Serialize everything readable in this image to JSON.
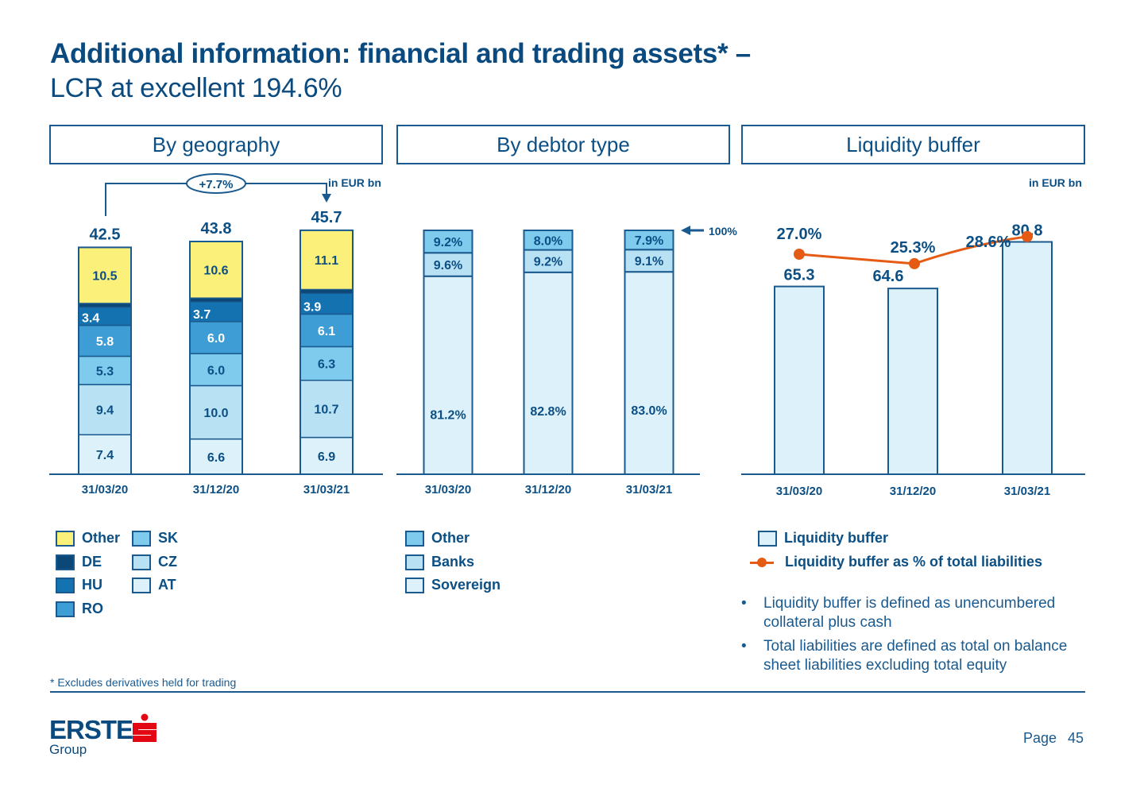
{
  "header": {
    "title": "Additional information: financial and trading assets* –",
    "subtitle": "LCR at excellent 194.6%"
  },
  "colors": {
    "dark_blue": "#0b4a7e",
    "line_orange": "#e55b13",
    "other_yellow": "#fbf07a",
    "de": "#0c4877",
    "hu": "#1472b1",
    "ro": "#3d9dd4",
    "sk": "#7fcbee",
    "cz": "#b9e1f4",
    "at": "#ddf1fa",
    "logo_red": "#e30613"
  },
  "panels": {
    "geography": {
      "title": "By geography",
      "unit": "in EUR bn",
      "growth_label": "+7.7%"
    },
    "debtor": {
      "title": "By debtor type",
      "hundred_label": "100%"
    },
    "liquidity": {
      "title": "Liquidity buffer",
      "unit": "in EUR bn"
    }
  },
  "chart_data": [
    {
      "type": "bar",
      "stacked": true,
      "title": "By geography",
      "unit": "in EUR bn",
      "categories": [
        "31/03/20",
        "31/12/20",
        "31/03/21"
      ],
      "totals": [
        "42.5",
        "43.8",
        "45.7"
      ],
      "series": [
        {
          "name": "AT",
          "color": "#ddf1fa",
          "values": [
            7.4,
            6.6,
            6.9
          ],
          "labels": [
            "7.4",
            "6.6",
            "6.9"
          ]
        },
        {
          "name": "CZ",
          "color": "#b9e1f4",
          "values": [
            9.4,
            10.0,
            10.7
          ],
          "labels": [
            "9.4",
            "10.0",
            "10.7"
          ]
        },
        {
          "name": "SK",
          "color": "#7fcbee",
          "values": [
            5.3,
            6.0,
            6.3
          ],
          "labels": [
            "5.3",
            "6.0",
            "6.3"
          ]
        },
        {
          "name": "RO",
          "color": "#3d9dd4",
          "values": [
            5.8,
            6.0,
            6.1
          ],
          "labels": [
            "5.8",
            "6.0",
            "6.1"
          ]
        },
        {
          "name": "HU",
          "color": "#1472b1",
          "values": [
            3.4,
            3.7,
            3.9
          ],
          "labels": [
            "3.4",
            "3.7",
            "3.9"
          ]
        },
        {
          "name": "DE",
          "color": "#0c4877",
          "values": [
            0.7,
            0.7,
            0.7
          ],
          "labels": [
            "0.7",
            "0.7",
            "0.7"
          ]
        },
        {
          "name": "Other",
          "color": "#fbf07a",
          "values": [
            10.5,
            10.6,
            11.1
          ],
          "labels": [
            "10.5",
            "10.6",
            "11.1"
          ]
        }
      ],
      "annotation": {
        "text": "+7.7%",
        "from": "31/03/20",
        "to": "31/03/21"
      },
      "legend": [
        {
          "name": "Other",
          "color": "#fbf07a"
        },
        {
          "name": "DE",
          "color": "#0c4877"
        },
        {
          "name": "HU",
          "color": "#1472b1"
        },
        {
          "name": "RO",
          "color": "#3d9dd4"
        },
        {
          "name": "SK",
          "color": "#7fcbee"
        },
        {
          "name": "CZ",
          "color": "#b9e1f4"
        },
        {
          "name": "AT",
          "color": "#ddf1fa"
        }
      ]
    },
    {
      "type": "bar",
      "stacked": true,
      "percent": true,
      "title": "By debtor type",
      "categories": [
        "31/03/20",
        "31/12/20",
        "31/03/21"
      ],
      "series": [
        {
          "name": "Sovereign",
          "color": "#ddf1fa",
          "values": [
            81.2,
            82.8,
            83.0
          ],
          "labels": [
            "81.2%",
            "82.8%",
            "83.0%"
          ]
        },
        {
          "name": "Banks",
          "color": "#b9e1f4",
          "values": [
            9.6,
            9.2,
            9.1
          ],
          "labels": [
            "9.6%",
            "9.2%",
            "9.1%"
          ]
        },
        {
          "name": "Other",
          "color": "#7fcbee",
          "values": [
            9.2,
            8.0,
            7.9
          ],
          "labels": [
            "9.2%",
            "8.0%",
            "7.9%"
          ]
        }
      ],
      "ylim": [
        0,
        100
      ],
      "annotation": "100%",
      "legend": [
        {
          "name": "Other",
          "color": "#7fcbee"
        },
        {
          "name": "Banks",
          "color": "#b9e1f4"
        },
        {
          "name": "Sovereign",
          "color": "#ddf1fa"
        }
      ]
    },
    {
      "type": "bar",
      "title": "Liquidity buffer",
      "unit": "in EUR bn",
      "categories": [
        "31/03/20",
        "31/12/20",
        "31/03/21"
      ],
      "series": [
        {
          "name": "Liquidity buffer",
          "kind": "bar",
          "color": "#ddf1fa",
          "values": [
            65.3,
            64.6,
            80.8
          ],
          "labels": [
            "65.3",
            "64.6",
            "80.8"
          ]
        },
        {
          "name": "Liquidity buffer as % of total liabilities",
          "kind": "line",
          "color": "#e55b13",
          "values": [
            27.0,
            25.3,
            28.6
          ],
          "labels": [
            "27.0%",
            "25.3%",
            "28.6%"
          ]
        }
      ],
      "legend": [
        {
          "name": "Liquidity buffer",
          "kind": "box",
          "color": "#ddf1fa"
        },
        {
          "name": "Liquidity buffer as % of total liabilities",
          "kind": "line",
          "color": "#e55b13"
        }
      ]
    }
  ],
  "notes": [
    "Liquidity buffer is defined as unencumbered collateral plus cash",
    "Total liabilities are defined as total on balance sheet liabilities excluding total equity"
  ],
  "footnote": "* Excludes derivatives held for trading",
  "footer": {
    "logo_word": "ERSTE",
    "logo_sub": "Group",
    "page_label": "Page",
    "page_number": "45"
  }
}
